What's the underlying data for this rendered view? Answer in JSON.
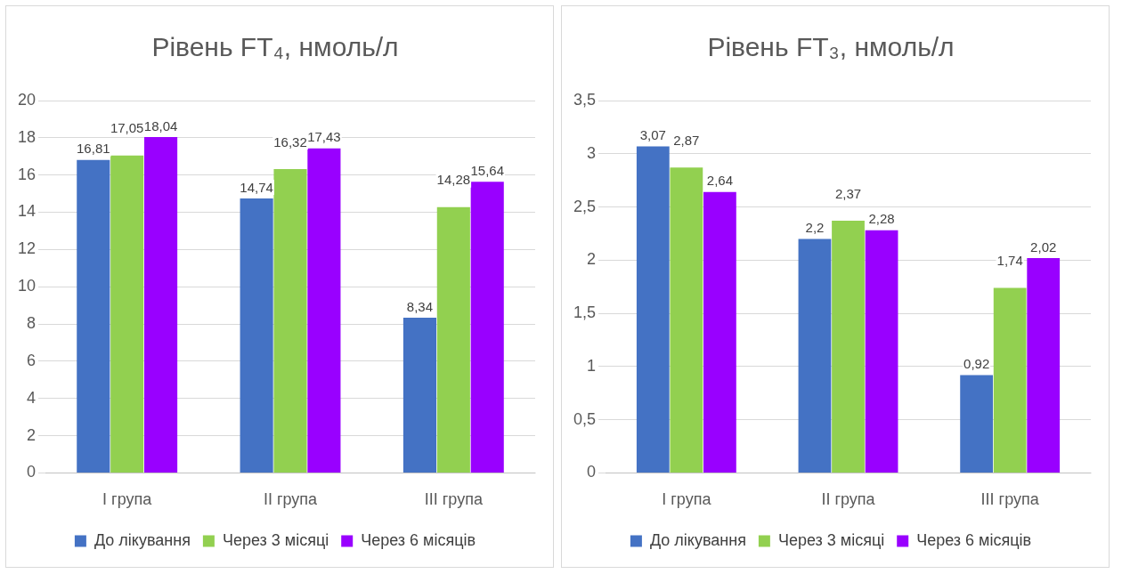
{
  "chart_data": [
    {
      "type": "bar",
      "title": "Рівень FT₄, нмоль/л",
      "categories": [
        "I група",
        "II група",
        "III група"
      ],
      "series": [
        {
          "name": "До лікування",
          "color": "#4472c4",
          "values": [
            16.81,
            14.74,
            8.34
          ],
          "value_labels": [
            "16,81",
            "14,74",
            "8,34"
          ]
        },
        {
          "name": "Через 3 місяці",
          "color": "#92d050",
          "values": [
            17.05,
            16.32,
            14.28
          ],
          "value_labels": [
            "17,05",
            "16,32",
            "14,28"
          ]
        },
        {
          "name": "Через 6 місяців",
          "color": "#9900ff",
          "values": [
            18.04,
            17.43,
            15.64
          ],
          "value_labels": [
            "18,04",
            "17,43",
            "15,64"
          ]
        }
      ],
      "ylim": [
        0,
        20
      ],
      "yticks": [
        0,
        2,
        4,
        6,
        8,
        10,
        12,
        14,
        16,
        18,
        20
      ],
      "grid": "y",
      "legend": "bottom"
    },
    {
      "type": "bar",
      "title": "Рівень FT₃, нмоль/л",
      "categories": [
        "I група",
        "II група",
        "III група"
      ],
      "series": [
        {
          "name": "До лікування",
          "color": "#4472c4",
          "values": [
            3.07,
            2.2,
            0.92
          ],
          "value_labels": [
            "3,07",
            "2,2",
            "0,92"
          ]
        },
        {
          "name": "Через 3 місяці",
          "color": "#92d050",
          "values": [
            2.87,
            2.37,
            1.74
          ],
          "value_labels": [
            "2,87",
            "2,37",
            "1,74"
          ]
        },
        {
          "name": "Через 6 місяців",
          "color": "#9900ff",
          "values": [
            2.64,
            2.28,
            2.02
          ],
          "value_labels": [
            "2,64",
            "2,28",
            "2,02"
          ]
        }
      ],
      "ylim": [
        0,
        3.5
      ],
      "yticks": [
        0,
        {
          "value": 0.5,
          "label": "0,5"
        },
        1,
        {
          "value": 1.5,
          "label": "1,5"
        },
        2,
        {
          "value": 2.5,
          "label": "2,5"
        },
        3,
        {
          "value": 3.5,
          "label": "3,5"
        }
      ],
      "grid": "y",
      "legend": "bottom"
    }
  ]
}
